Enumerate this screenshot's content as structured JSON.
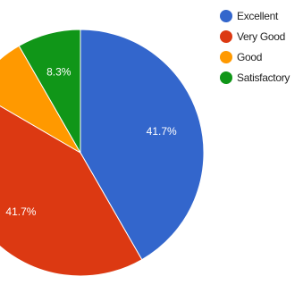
{
  "chart_data": {
    "type": "pie",
    "start_angle_deg": 90,
    "direction": "clockwise",
    "slices": [
      {
        "name": "Excellent",
        "value": 41.7,
        "color": "#3366cc",
        "label": "41.7%"
      },
      {
        "name": "Very Good",
        "value": 41.7,
        "color": "#dc3912",
        "label": "41.7%"
      },
      {
        "name": "Good",
        "value": 8.3,
        "color": "#ff9900",
        "label": ""
      },
      {
        "name": "Satisfactory",
        "value": 8.3,
        "color": "#109618",
        "label": "8.3%"
      }
    ],
    "legend_position": "right"
  }
}
